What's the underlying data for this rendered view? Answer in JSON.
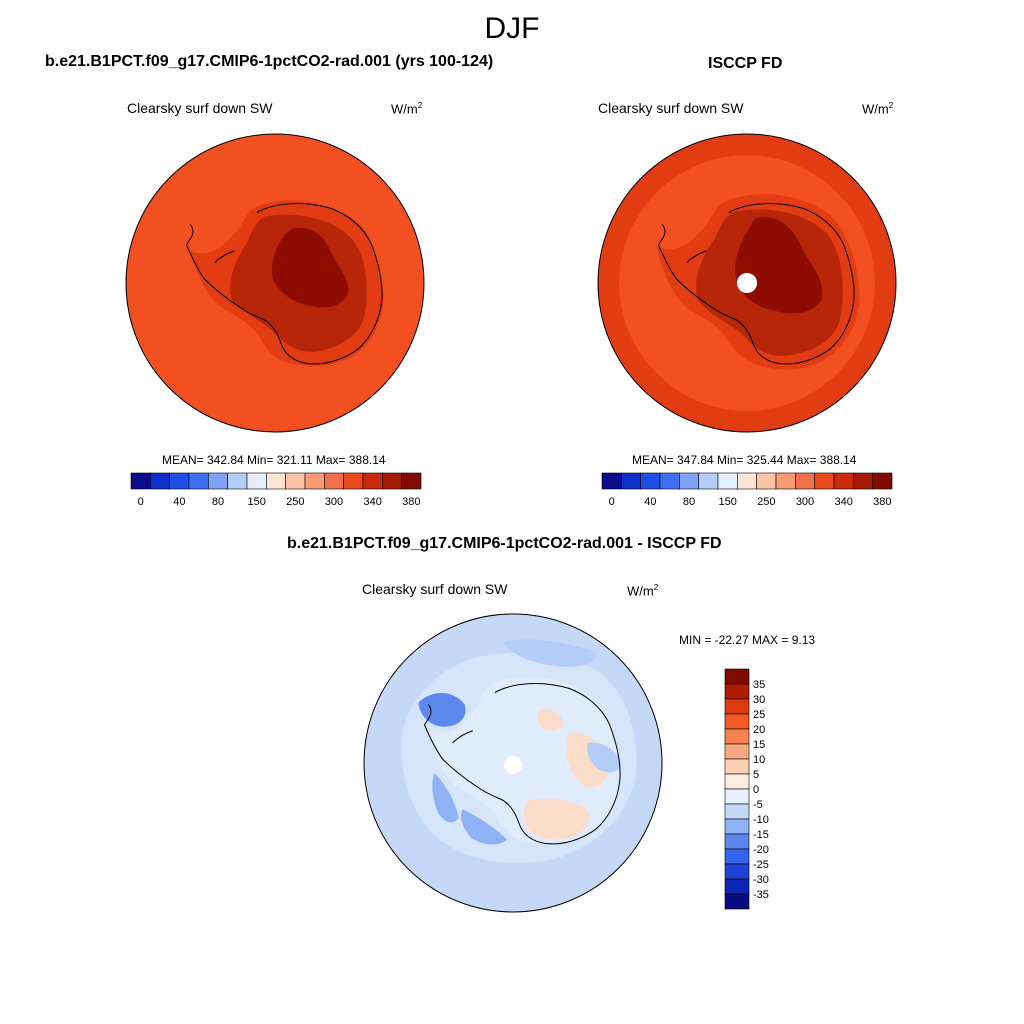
{
  "page_title": "DJF",
  "panels": [
    {
      "title": "b.e21.B1PCT.f09_g17.CMIP6-1pctCO2-rad.001 (yrs 100-124)",
      "variable": "Clearsky surf down SW",
      "units_base": "W/m",
      "units_exp": "2",
      "stats": "MEAN= 342.84  Min= 321.11  Max= 388.14"
    },
    {
      "title": "ISCCP FD",
      "variable": "Clearsky surf down SW",
      "units_base": "W/m",
      "units_exp": "2",
      "stats": "MEAN= 347.84  Min= 325.44  Max= 388.14"
    },
    {
      "title": "b.e21.B1PCT.f09_g17.CMIP6-1pctCO2-rad.001 - ISCCP FD",
      "variable": "Clearsky surf down SW",
      "units_base": "W/m",
      "units_exp": "2",
      "stats": "MIN = -22.27 MAX =   9.13"
    }
  ],
  "abs_colorbar": {
    "labels": [
      "0",
      "40",
      "80",
      "150",
      "250",
      "300",
      "340",
      "380"
    ],
    "colors": [
      "#0b0b8c",
      "#0d2ec9",
      "#1f4ee6",
      "#3f6ff0",
      "#7ea3f7",
      "#b3cdf9",
      "#e3eefc",
      "#fde4d6",
      "#fcc3a6",
      "#f99c76",
      "#f2714a",
      "#e84a1e",
      "#c92b0c",
      "#a41a05",
      "#7f0b00"
    ]
  },
  "diff_colorbar": {
    "labels": [
      "35",
      "30",
      "25",
      "20",
      "15",
      "10",
      "5",
      "0",
      "-5",
      "-10",
      "-15",
      "-20",
      "-25",
      "-30",
      "-35"
    ],
    "colors": [
      "#7f0b00",
      "#b01b04",
      "#de3a0e",
      "#f45a25",
      "#f7824f",
      "#faa882",
      "#fcd0b5",
      "#fdece1",
      "#e6effc",
      "#c4d8fa",
      "#8fb1f5",
      "#5c86ee",
      "#3563ea",
      "#1f42d8",
      "#0c26b3",
      "#0a0a82"
    ]
  },
  "colors": {
    "model_ocean": "#f25020",
    "model_coast": "#e23c12",
    "model_inner": "#b8260a",
    "model_core": "#8d0b00",
    "obs_outer": "#e23c12",
    "obs_ocean": "#f25020",
    "diff_ocean": "#c5d8f8",
    "diff_ice": "#dde9fb",
    "diff_warm": "#fbdcc8",
    "diff_blue": "#5d88ee"
  },
  "map_features": [
    "Antarctic coastline",
    "South Pole missing-data disk"
  ]
}
